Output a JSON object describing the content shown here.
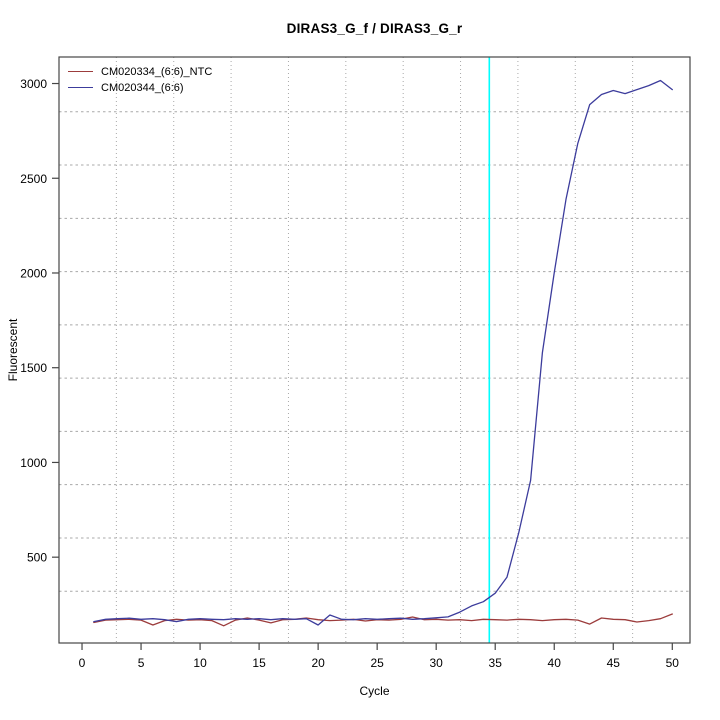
{
  "page": {
    "background": "#ffffff"
  },
  "chart_data": {
    "type": "line",
    "title": "DIRAS3_G_f / DIRAS3_G_r",
    "xlabel": "Cycle",
    "ylabel": "Fluorescent",
    "xlim": [
      -1.95,
      51.5
    ],
    "ylim": [
      47,
      3140
    ],
    "x_ticks": [
      0,
      5,
      10,
      15,
      20,
      25,
      30,
      35,
      40,
      45,
      50
    ],
    "y_ticks": [
      500,
      1000,
      1500,
      2000,
      2500,
      3000
    ],
    "grid": {
      "on": true,
      "nx": 11,
      "ny": 11,
      "color": "#a8a8a8"
    },
    "threshold_line": {
      "x": 34.5,
      "color": "#00ffff"
    },
    "legend_position": "top-left",
    "x": [
      1,
      2,
      3,
      4,
      5,
      6,
      7,
      8,
      9,
      10,
      11,
      12,
      13,
      14,
      15,
      16,
      17,
      18,
      19,
      20,
      21,
      22,
      23,
      24,
      25,
      26,
      27,
      28,
      29,
      30,
      31,
      32,
      33,
      34,
      35,
      36,
      37,
      38,
      39,
      40,
      41,
      42,
      43,
      44,
      45,
      46,
      47,
      48,
      49,
      50
    ],
    "series": [
      {
        "name": "CM020334_(6:6)_NTC",
        "color": "#9c3c3c",
        "values": [
          155,
          168,
          170,
          172,
          168,
          142,
          165,
          172,
          168,
          170,
          165,
          138,
          168,
          179,
          168,
          153,
          170,
          172,
          179,
          170,
          165,
          168,
          172,
          163,
          170,
          168,
          172,
          184,
          170,
          172,
          168,
          170,
          165,
          172,
          170,
          168,
          172,
          170,
          165,
          170,
          172,
          168,
          147,
          179,
          172,
          170,
          158,
          165,
          175,
          200
        ]
      },
      {
        "name": "CM020344_(6:6)",
        "color": "#3c3c9c",
        "values": [
          160,
          172,
          175,
          178,
          172,
          175,
          170,
          160,
          172,
          175,
          172,
          170,
          175,
          172,
          175,
          170,
          175,
          172,
          175,
          142,
          195,
          172,
          170,
          175,
          172,
          175,
          178,
          172,
          175,
          180,
          185,
          210,
          243,
          265,
          310,
          395,
          630,
          905,
          1580,
          2000,
          2389,
          2684,
          2889,
          2942,
          2963,
          2947,
          2968,
          2989,
          3016,
          2968
        ]
      }
    ]
  }
}
